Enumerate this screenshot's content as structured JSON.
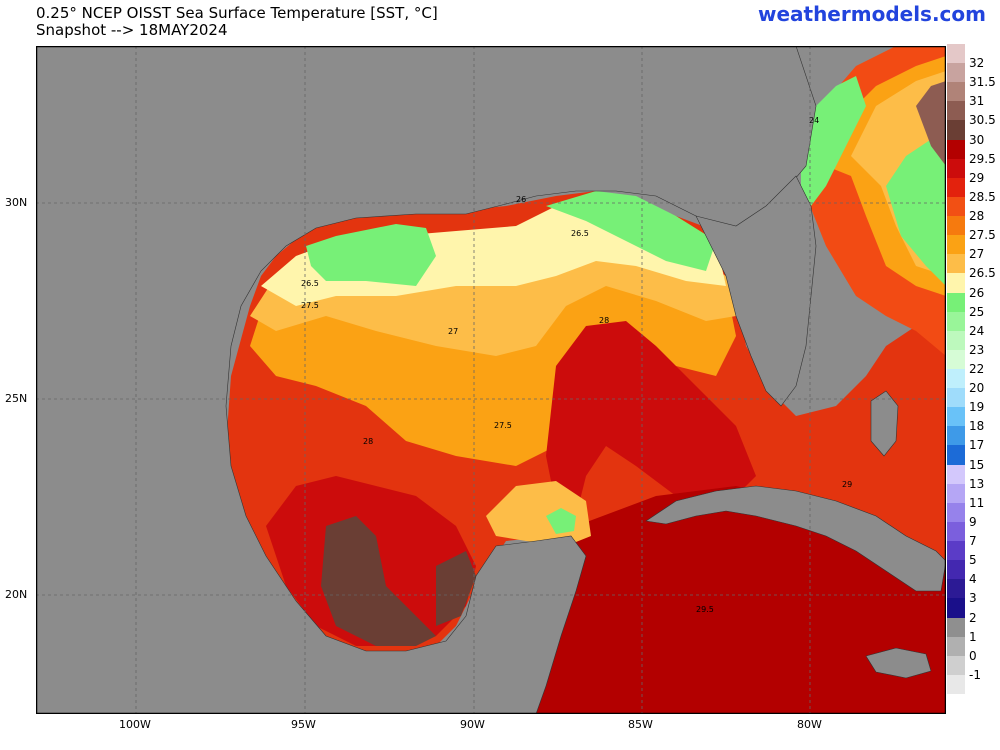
{
  "header": {
    "title_line1": "0.25° NCEP OISST Sea Surface Temperature [SST, °C]",
    "title_line2": "Snapshot --> 18MAY2024",
    "brand": "weathermodels.com"
  },
  "axes": {
    "lon_ticks": [
      "100W",
      "95W",
      "90W",
      "85W",
      "80W"
    ],
    "lat_ticks": [
      "30N",
      "25N",
      "20N"
    ]
  },
  "contour_labels": [
    "26",
    "26.5",
    "26.5",
    "27.5",
    "27",
    "28",
    "27.5",
    "28",
    "24",
    "29",
    "29.5"
  ],
  "colorbar": {
    "labels": [
      "32",
      "31.5",
      "31",
      "30.5",
      "30",
      "29.5",
      "29",
      "28.5",
      "28",
      "27.5",
      "27",
      "26.5",
      "26",
      "25",
      "24",
      "23",
      "22",
      "20",
      "19",
      "18",
      "17",
      "15",
      "13",
      "11",
      "9",
      "7",
      "5",
      "4",
      "3",
      "2",
      "1",
      "0",
      "-1"
    ],
    "colors": [
      "#e4c8c8",
      "#c8a39f",
      "#b08378",
      "#8d5c52",
      "#6a3e34",
      "#b30000",
      "#cc0c0c",
      "#e3220d",
      "#f25014",
      "#f67a0e",
      "#fba214",
      "#fdbd48",
      "#fff5ac",
      "#77f077",
      "#99f599",
      "#bdf9bd",
      "#d6fcd6",
      "#bfeffc",
      "#9fdcfb",
      "#69c2f8",
      "#3e9ae8",
      "#1c6bd7",
      "#d3c8fc",
      "#b5a6f5",
      "#9682eb",
      "#7b5fdd",
      "#5b3cc7",
      "#4328b0",
      "#2c1a95",
      "#1a0f8a",
      "#8f8f8f",
      "#b0b0b0",
      "#cfcfcf",
      "#e8e8e8"
    ]
  }
}
